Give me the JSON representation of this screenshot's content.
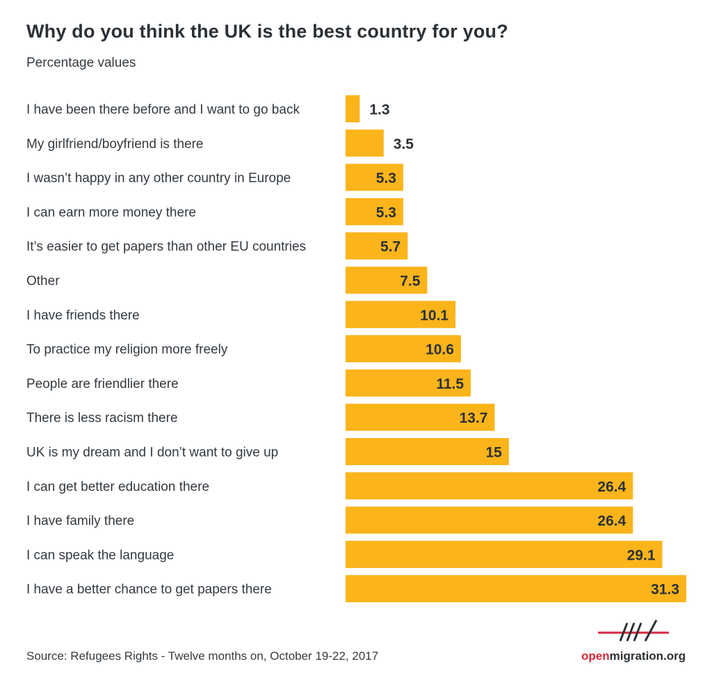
{
  "title": "Why do you think the UK is the best country for you?",
  "subtitle": "Percentage values",
  "source": "Source: Refugees Rights - Twelve months on, October 19-22, 2017",
  "logo": {
    "part1": "open",
    "part2": "migration.org",
    "icon": "logo-mark-icon"
  },
  "colors": {
    "bar": "#fbb41a",
    "text": "#333a40",
    "accent": "#d7263d"
  },
  "chart_data": {
    "type": "bar",
    "orientation": "horizontal",
    "title": "Why do you think the UK is the best country for you?",
    "subtitle": "Percentage values",
    "categories": [
      "I have been there before and I want to go back",
      "My girlfriend/boyfriend is there",
      "I wasn’t happy in any other country in Europe",
      "I can earn more money there",
      "It’s easier to get papers than other EU countries",
      "Other",
      "I have friends there",
      "To practice my religion more freely",
      "People are friendlier there",
      "There is less racism there",
      "UK is my dream and I don’t want to give up",
      "I can get better education there",
      "I have family there",
      "I can speak the language",
      "I have a better chance to get papers there"
    ],
    "values": [
      1.3,
      3.5,
      5.3,
      5.3,
      5.7,
      7.5,
      10.1,
      10.6,
      11.5,
      13.7,
      15,
      26.4,
      26.4,
      29.1,
      31.3
    ],
    "value_labels": [
      "1.3",
      "3.5",
      "5.3",
      "5.3",
      "5.7",
      "7.5",
      "10.1",
      "10.6",
      "11.5",
      "13.7",
      "15",
      "26.4",
      "26.4",
      "29.1",
      "31.3"
    ],
    "xlim": [
      0,
      31.3
    ],
    "grid": false,
    "legend": "none"
  }
}
